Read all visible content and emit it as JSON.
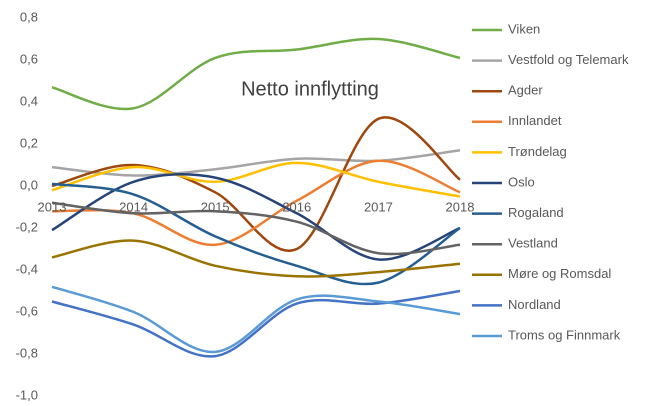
{
  "chart_data": {
    "type": "line",
    "title": "Netto innflytting",
    "categories": [
      "2013",
      "2014",
      "2015",
      "2016",
      "2017",
      "2018"
    ],
    "ylim": [
      -1.0,
      0.8
    ],
    "yticks": [
      {
        "value": -1.0,
        "label": "-1,0"
      },
      {
        "value": -0.8,
        "label": "-0,8"
      },
      {
        "value": -0.6,
        "label": "-0,6"
      },
      {
        "value": -0.4,
        "label": "-0,4"
      },
      {
        "value": -0.2,
        "label": "-0,2"
      },
      {
        "value": 0.0,
        "label": "0,0"
      },
      {
        "value": 0.2,
        "label": "0,2"
      },
      {
        "value": 0.4,
        "label": "0,4"
      },
      {
        "value": 0.6,
        "label": "0,6"
      },
      {
        "value": 0.8,
        "label": "0,8"
      }
    ],
    "grid": false,
    "smooth": true,
    "legend": "right",
    "series": [
      {
        "name": "Viken",
        "color": "#70ad47",
        "values": [
          0.47,
          0.37,
          0.61,
          0.65,
          0.7,
          0.61
        ]
      },
      {
        "name": "Vestfold og Telemark",
        "color": "#a5a5a5",
        "values": [
          0.09,
          0.05,
          0.08,
          0.13,
          0.12,
          0.17
        ]
      },
      {
        "name": "Agder",
        "color": "#9e480e",
        "values": [
          0.0,
          0.1,
          -0.03,
          -0.3,
          0.32,
          0.03
        ]
      },
      {
        "name": "Innlandet",
        "color": "#ed7d31",
        "values": [
          -0.12,
          -0.13,
          -0.28,
          -0.07,
          0.12,
          -0.03
        ]
      },
      {
        "name": "Trøndelag",
        "color": "#ffc000",
        "values": [
          -0.02,
          0.09,
          0.02,
          0.11,
          0.02,
          -0.05
        ]
      },
      {
        "name": "Oslo",
        "color": "#264478",
        "values": [
          -0.21,
          0.02,
          0.04,
          -0.13,
          -0.35,
          -0.2
        ]
      },
      {
        "name": "Rogaland",
        "color": "#255e91",
        "values": [
          0.01,
          -0.04,
          -0.24,
          -0.38,
          -0.46,
          -0.2
        ]
      },
      {
        "name": "Vestland",
        "color": "#636363",
        "values": [
          -0.08,
          -0.13,
          -0.12,
          -0.17,
          -0.32,
          -0.28
        ]
      },
      {
        "name": "Møre og Romsdal",
        "color": "#997300",
        "values": [
          -0.34,
          -0.26,
          -0.38,
          -0.43,
          -0.41,
          -0.37
        ]
      },
      {
        "name": "Nordland",
        "color": "#4472c4",
        "values": [
          -0.55,
          -0.66,
          -0.81,
          -0.56,
          -0.56,
          -0.5
        ]
      },
      {
        "name": "Troms og Finnmark",
        "color": "#5b9bd5",
        "values": [
          -0.48,
          -0.6,
          -0.79,
          -0.54,
          -0.55,
          -0.61
        ]
      }
    ]
  }
}
